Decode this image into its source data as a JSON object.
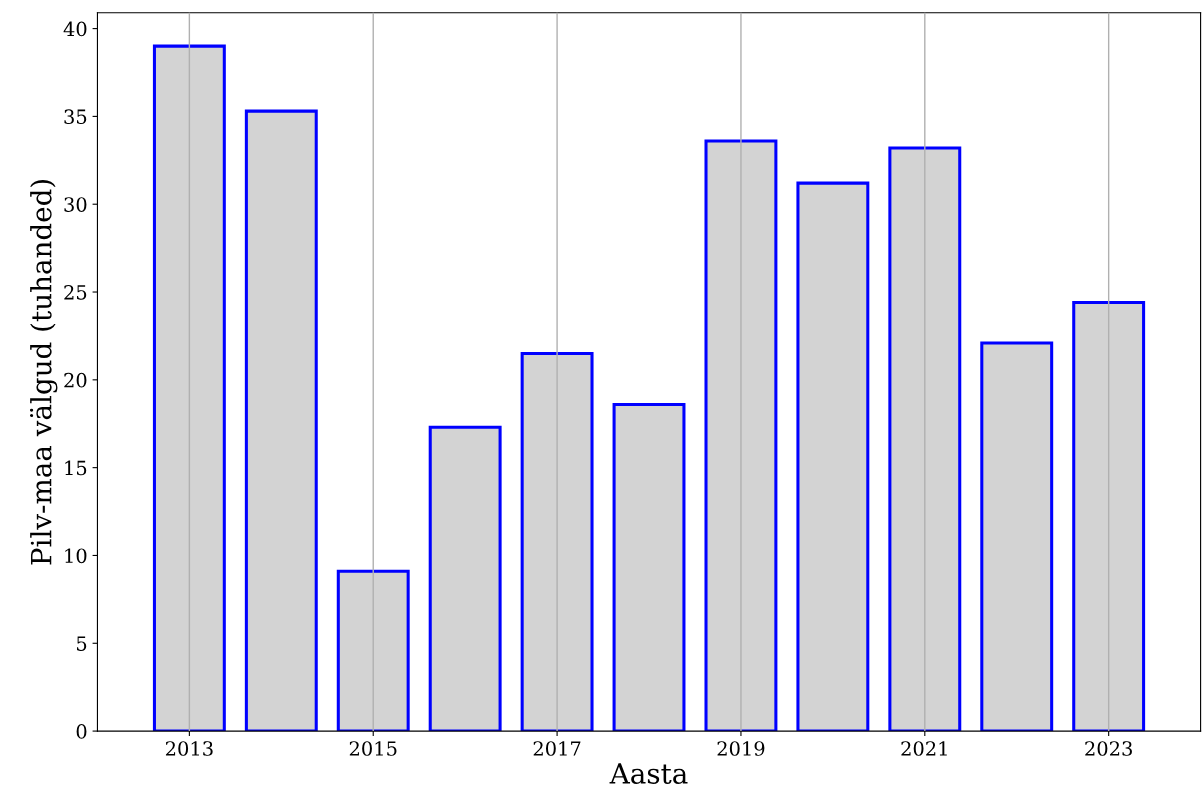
{
  "chart_data": {
    "type": "bar",
    "xlabel": "Aasta",
    "ylabel": "Pilv-maa välgud (tuhanded)",
    "x": [
      2013,
      2014,
      2015,
      2016,
      2017,
      2018,
      2019,
      2020,
      2021,
      2022,
      2023
    ],
    "values": [
      39.0,
      35.3,
      9.1,
      17.3,
      21.5,
      18.6,
      33.6,
      31.2,
      33.2,
      22.1,
      24.4
    ],
    "color": "#d3d3d3",
    "xlim": [
      2012,
      2024
    ],
    "xticks": [
      2013,
      2015,
      2017,
      2019,
      2021,
      2023
    ],
    "ylim": [
      0,
      40.9
    ],
    "yticks": [
      0,
      5,
      10,
      15,
      20,
      25,
      30,
      35,
      40
    ],
    "grid": "x"
  }
}
